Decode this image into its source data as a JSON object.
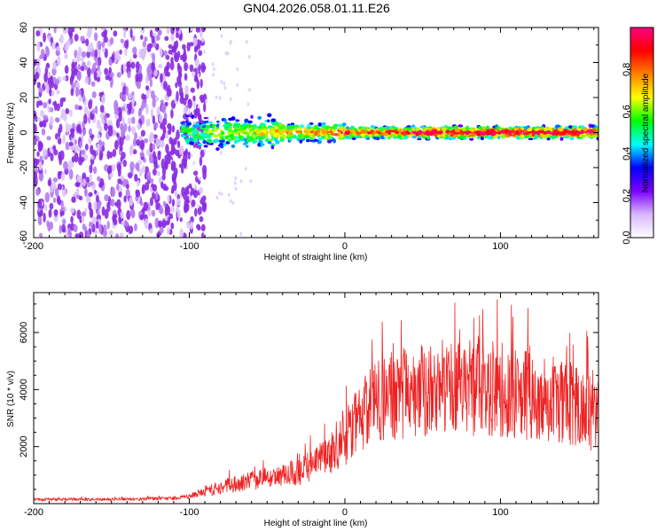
{
  "figure": {
    "title": "GN04.2026.058.01.11.E26"
  },
  "chart_data": [
    {
      "type": "heatmap",
      "name": "spectrogram",
      "xlabel": "Height of straight line (km)",
      "ylabel": "Frequency (Hz)",
      "xlim": [
        -200,
        163
      ],
      "ylim": [
        -60,
        60
      ],
      "x_ticks": [
        -200,
        -100,
        0,
        100
      ],
      "y_ticks": [
        -60,
        -40,
        -20,
        0,
        20,
        40,
        60
      ],
      "grid": false,
      "colorbar": {
        "label": "Normalized spectral amplitude",
        "range": [
          0,
          1
        ],
        "ticks": [
          0.0,
          0.2,
          0.4,
          0.6,
          0.8
        ],
        "colormap": [
          "#ffffff",
          "#d9b6ff",
          "#7a00ff",
          "#0000ff",
          "#00ffff",
          "#00ff00",
          "#ffff00",
          "#ff8000",
          "#ff0000",
          "#ff0080"
        ]
      },
      "regions": [
        {
          "x_range": [
            -200,
            -100
          ],
          "description": "diffuse noise across band",
          "amplitude": 0.05
        },
        {
          "x_range": [
            -105,
            163
          ],
          "freq_center": 0,
          "freq_halfwidth": 5,
          "amplitude_range": [
            0.3,
            0.9
          ]
        }
      ]
    },
    {
      "type": "line",
      "name": "snr",
      "xlabel": "Height of straight line (km)",
      "ylabel": "SNR (10 * v/v)",
      "xlim": [
        -200,
        163
      ],
      "ylim": [
        0,
        7400
      ],
      "x_ticks": [
        -200,
        -100,
        0,
        100
      ],
      "y_ticks": [
        2000,
        4000,
        6000
      ],
      "grid": false,
      "series": [
        {
          "name": "SNR",
          "color": "#ee2222",
          "x": [
            -200,
            -150,
            -110,
            -100,
            -90,
            -70,
            -50,
            -30,
            -10,
            0,
            10,
            20,
            40,
            60,
            80,
            100,
            120,
            140,
            150,
            163
          ],
          "y": [
            150,
            150,
            180,
            250,
            450,
            700,
            900,
            1100,
            1700,
            2300,
            3000,
            3600,
            3900,
            4100,
            4050,
            4000,
            3800,
            3600,
            3400,
            3000
          ]
        }
      ]
    }
  ]
}
